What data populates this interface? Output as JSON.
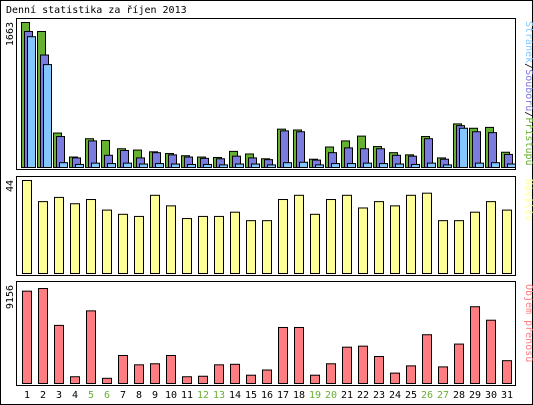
{
  "chart_data": {
    "type": "bar",
    "title": "Denní statistika za říjen 2013",
    "categories": [
      "1",
      "2",
      "3",
      "4",
      "5",
      "6",
      "7",
      "8",
      "9",
      "10",
      "11",
      "12",
      "13",
      "14",
      "15",
      "16",
      "17",
      "18",
      "19",
      "20",
      "21",
      "22",
      "23",
      "24",
      "25",
      "26",
      "27",
      "28",
      "29",
      "30",
      "31"
    ],
    "weekend_days": [
      "5",
      "6",
      "12",
      "13",
      "19",
      "20",
      "26",
      "27"
    ],
    "panels": [
      {
        "name": "pristupy",
        "ylabel_parts": [
          "Stránek",
          "/",
          "Souborů",
          "/",
          "Přístupů"
        ],
        "ymax_label": "1663",
        "ylim": [
          0,
          1663
        ],
        "series": [
          {
            "name": "Přístupů",
            "color": "#66b032",
            "values": [
              1663,
              1560,
              395,
              120,
              330,
              310,
              215,
              200,
              180,
              160,
              135,
              120,
              115,
              185,
              155,
              100,
              440,
              430,
              95,
              235,
              305,
              360,
              240,
              170,
              145,
              355,
              110,
              500,
              450,
              460,
              175
            ]
          },
          {
            "name": "Souborů",
            "color": "#7b7be0",
            "values": [
              1560,
              1290,
              355,
              110,
              305,
              140,
              195,
              110,
              170,
              145,
              120,
              105,
              100,
              130,
              110,
              90,
              420,
              410,
              85,
              170,
              225,
              215,
              215,
              140,
              130,
              330,
              95,
              480,
              410,
              400,
              150
            ]
          },
          {
            "name": "Stránek",
            "color": "#82c8ff",
            "values": [
              1500,
              1180,
              55,
              35,
              50,
              45,
              50,
              40,
              45,
              40,
              35,
              35,
              30,
              40,
              40,
              30,
              55,
              60,
              30,
              45,
              45,
              50,
              45,
              40,
              35,
              50,
              30,
              450,
              50,
              55,
              40
            ]
          }
        ]
      },
      {
        "name": "navstevy",
        "ylabel_parts": [
          "Návštěv"
        ],
        "ymax_label": "44",
        "ylim": [
          0,
          44
        ],
        "series": [
          {
            "name": "Návštěv",
            "color": "#ffff99",
            "values": [
              44,
              34,
              36,
              33,
              35,
              30,
              28,
              27,
              37,
              32,
              26,
              27,
              27,
              29,
              25,
              25,
              35,
              37,
              28,
              35,
              37,
              31,
              34,
              32,
              37,
              38,
              25,
              25,
              29,
              34,
              30
            ]
          }
        ]
      },
      {
        "name": "objem",
        "ylabel_parts": [
          "Objem přenosů"
        ],
        "ymax_label": "9156",
        "ylim": [
          0,
          9156
        ],
        "series": [
          {
            "name": "Objem přenosů",
            "color": "#ff7c80",
            "values": [
              8900,
              9156,
              5600,
              650,
              7000,
              500,
              2700,
              1800,
              1900,
              2700,
              650,
              700,
              1800,
              1850,
              800,
              1300,
              5400,
              5400,
              800,
              1900,
              3500,
              3600,
              2600,
              1000,
              1700,
              4700,
              1600,
              3800,
              7400,
              6100,
              2200
            ]
          }
        ]
      }
    ]
  }
}
